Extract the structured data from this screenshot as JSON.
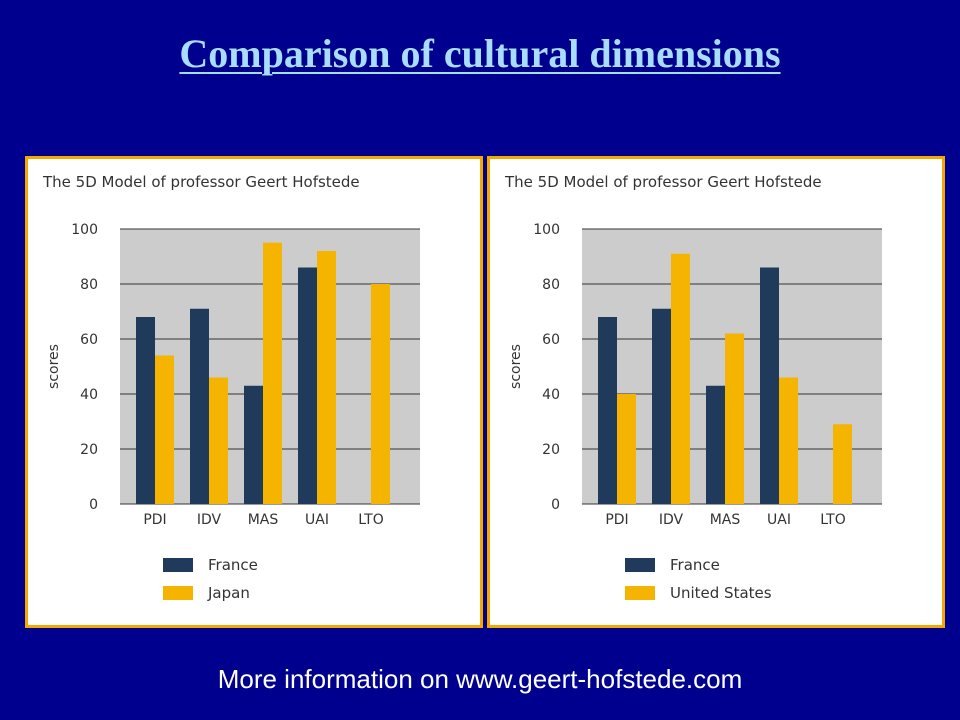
{
  "slide": {
    "title": "Comparison of cultural dimensions",
    "footer": "More information on www.geert-hofstede.com"
  },
  "colors": {
    "background": "#00008f",
    "title": "#a9ddff",
    "panel_border": "#f5a800",
    "plot_bg": "#cccccc",
    "france": "#1f3a5a",
    "comparison": "#f5b400"
  },
  "chart_data": [
    {
      "type": "bar",
      "title": "The 5D Model of professor Geert Hofstede",
      "xlabel": "",
      "ylabel": "scores",
      "ylim": [
        0,
        100
      ],
      "yticks": [
        0,
        20,
        40,
        60,
        80,
        100
      ],
      "categories": [
        "PDI",
        "IDV",
        "MAS",
        "UAI",
        "LTO"
      ],
      "grid": true,
      "legend_position": "bottom",
      "series": [
        {
          "name": "France",
          "values": [
            68,
            71,
            43,
            86,
            null
          ]
        },
        {
          "name": "Japan",
          "values": [
            54,
            46,
            95,
            92,
            80
          ]
        }
      ]
    },
    {
      "type": "bar",
      "title": "The 5D Model of professor Geert Hofstede",
      "xlabel": "",
      "ylabel": "scores",
      "ylim": [
        0,
        100
      ],
      "yticks": [
        0,
        20,
        40,
        60,
        80,
        100
      ],
      "categories": [
        "PDI",
        "IDV",
        "MAS",
        "UAI",
        "LTO"
      ],
      "grid": true,
      "legend_position": "bottom",
      "series": [
        {
          "name": "France",
          "values": [
            68,
            71,
            43,
            86,
            null
          ]
        },
        {
          "name": "United States",
          "values": [
            40,
            91,
            62,
            46,
            29
          ]
        }
      ]
    }
  ]
}
